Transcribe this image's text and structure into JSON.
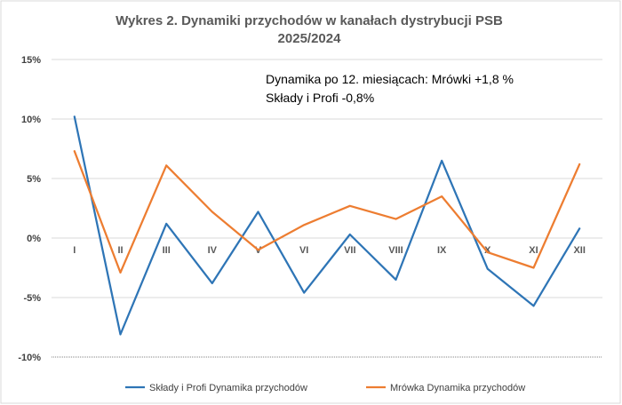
{
  "chart_data": {
    "type": "line",
    "title": "Wykres 2. Dynamiki przychodów w kanałach dystrybucji PSB",
    "subtitle": "2025/2024",
    "categories": [
      "I",
      "II",
      "III",
      "IV",
      "V",
      "VI",
      "VII",
      "VIII",
      "IX",
      "X",
      "XI",
      "XII"
    ],
    "y_tick_labels": [
      "15%",
      "10%",
      "5%",
      "0%",
      "-5%",
      "-10%"
    ],
    "ylim": [
      -10,
      15
    ],
    "grid": true,
    "legend_position": "bottom",
    "annotation_lines": [
      "Dynamika po 12. miesiącach: Mrówki  +1,8 %",
      "Składy i Profi -0,8%"
    ],
    "series": [
      {
        "name": "Składy i Profi Dynamika przychodów",
        "color": "#2E75B6",
        "values": [
          10.2,
          -8.1,
          1.2,
          -3.8,
          2.2,
          -4.6,
          0.3,
          -3.5,
          6.5,
          -2.6,
          -5.7,
          0.8
        ]
      },
      {
        "name": "Mrówka Dynamika przychodów",
        "color": "#ED7D31",
        "values": [
          7.3,
          -2.9,
          6.1,
          2.2,
          -1.0,
          1.1,
          2.7,
          1.6,
          3.5,
          -1.2,
          -2.5,
          6.2
        ]
      }
    ]
  }
}
